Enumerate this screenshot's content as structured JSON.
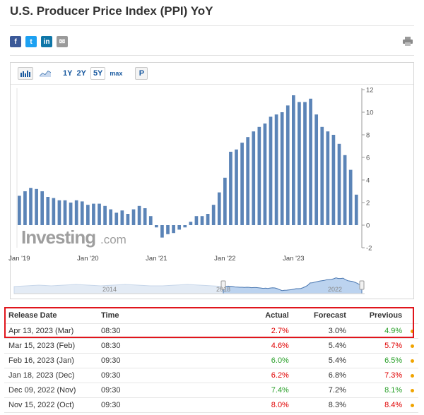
{
  "page": {
    "title": "U.S. Producer Price Index (PPI) YoY"
  },
  "share": {
    "facebook_label": "f",
    "twitter_label": "t",
    "linkedin_label": "in",
    "email_label": "✉",
    "print_icon": "printer-icon"
  },
  "toolbar": {
    "bar_chart_icon": "bar-chart-icon",
    "area_chart_icon": "area-chart-icon",
    "r1y": "1Y",
    "r2y": "2Y",
    "r5y": "5Y",
    "rmax": "max",
    "p": "P",
    "active_range": "5Y"
  },
  "colors": {
    "bar": "#5b84b7",
    "accent": "#1a5aa0",
    "actual_red": "#e00000",
    "actual_green": "#2aa02a",
    "highlight": "#e0151c",
    "dot": "#f0a400"
  },
  "chart_data": {
    "type": "bar",
    "watermark": "Investing.com",
    "ylim": [
      -2,
      12
    ],
    "yticks": [
      -2,
      0,
      2,
      4,
      6,
      8,
      10,
      12
    ],
    "xtick_labels": [
      "Jan '19",
      "Jan '20",
      "Jan '21",
      "Jan '22",
      "Jan '23"
    ],
    "navigator_labels": [
      "2014",
      "2018",
      "2022"
    ],
    "series": [
      {
        "values": [
          2.6,
          3.0,
          3.3,
          3.2,
          3.0,
          2.5,
          2.4,
          2.2,
          2.2,
          2.0,
          2.2,
          2.1,
          1.8,
          1.9,
          1.9,
          1.7,
          1.4,
          1.1,
          1.3,
          1.0,
          1.4,
          1.7,
          1.5,
          0.8,
          -0.2,
          -1.1,
          -0.8,
          -0.7,
          -0.4,
          -0.2,
          0.3,
          0.8,
          0.8,
          1.0,
          1.8,
          2.9,
          4.2,
          6.5,
          6.7,
          7.3,
          7.8,
          8.3,
          8.7,
          9.0,
          9.6,
          9.8,
          10.0,
          10.6,
          11.5,
          10.9,
          10.9,
          11.2,
          9.8,
          8.7,
          8.3,
          8.0,
          7.2,
          6.2,
          4.9,
          2.7
        ]
      }
    ]
  },
  "table": {
    "headers": {
      "release_date": "Release Date",
      "time": "Time",
      "actual": "Actual",
      "forecast": "Forecast",
      "previous": "Previous"
    },
    "rows": [
      {
        "date": "Apr 13, 2023 (Mar)",
        "time": "08:30",
        "actual": "2.7%",
        "actual_color": "red",
        "forecast": "3.0%",
        "previous": "4.9%",
        "previous_color": "green"
      },
      {
        "date": "Mar 15, 2023 (Feb)",
        "time": "08:30",
        "actual": "4.6%",
        "actual_color": "red",
        "forecast": "5.4%",
        "previous": "5.7%",
        "previous_color": "red"
      },
      {
        "date": "Feb 16, 2023 (Jan)",
        "time": "09:30",
        "actual": "6.0%",
        "actual_color": "green",
        "forecast": "5.4%",
        "previous": "6.5%",
        "previous_color": "green"
      },
      {
        "date": "Jan 18, 2023 (Dec)",
        "time": "09:30",
        "actual": "6.2%",
        "actual_color": "red",
        "forecast": "6.8%",
        "previous": "7.3%",
        "previous_color": "red"
      },
      {
        "date": "Dec 09, 2022 (Nov)",
        "time": "09:30",
        "actual": "7.4%",
        "actual_color": "green",
        "forecast": "7.2%",
        "previous": "8.1%",
        "previous_color": "green"
      },
      {
        "date": "Nov 15, 2022 (Oct)",
        "time": "09:30",
        "actual": "8.0%",
        "actual_color": "red",
        "forecast": "8.3%",
        "previous": "8.4%",
        "previous_color": "red"
      }
    ]
  }
}
